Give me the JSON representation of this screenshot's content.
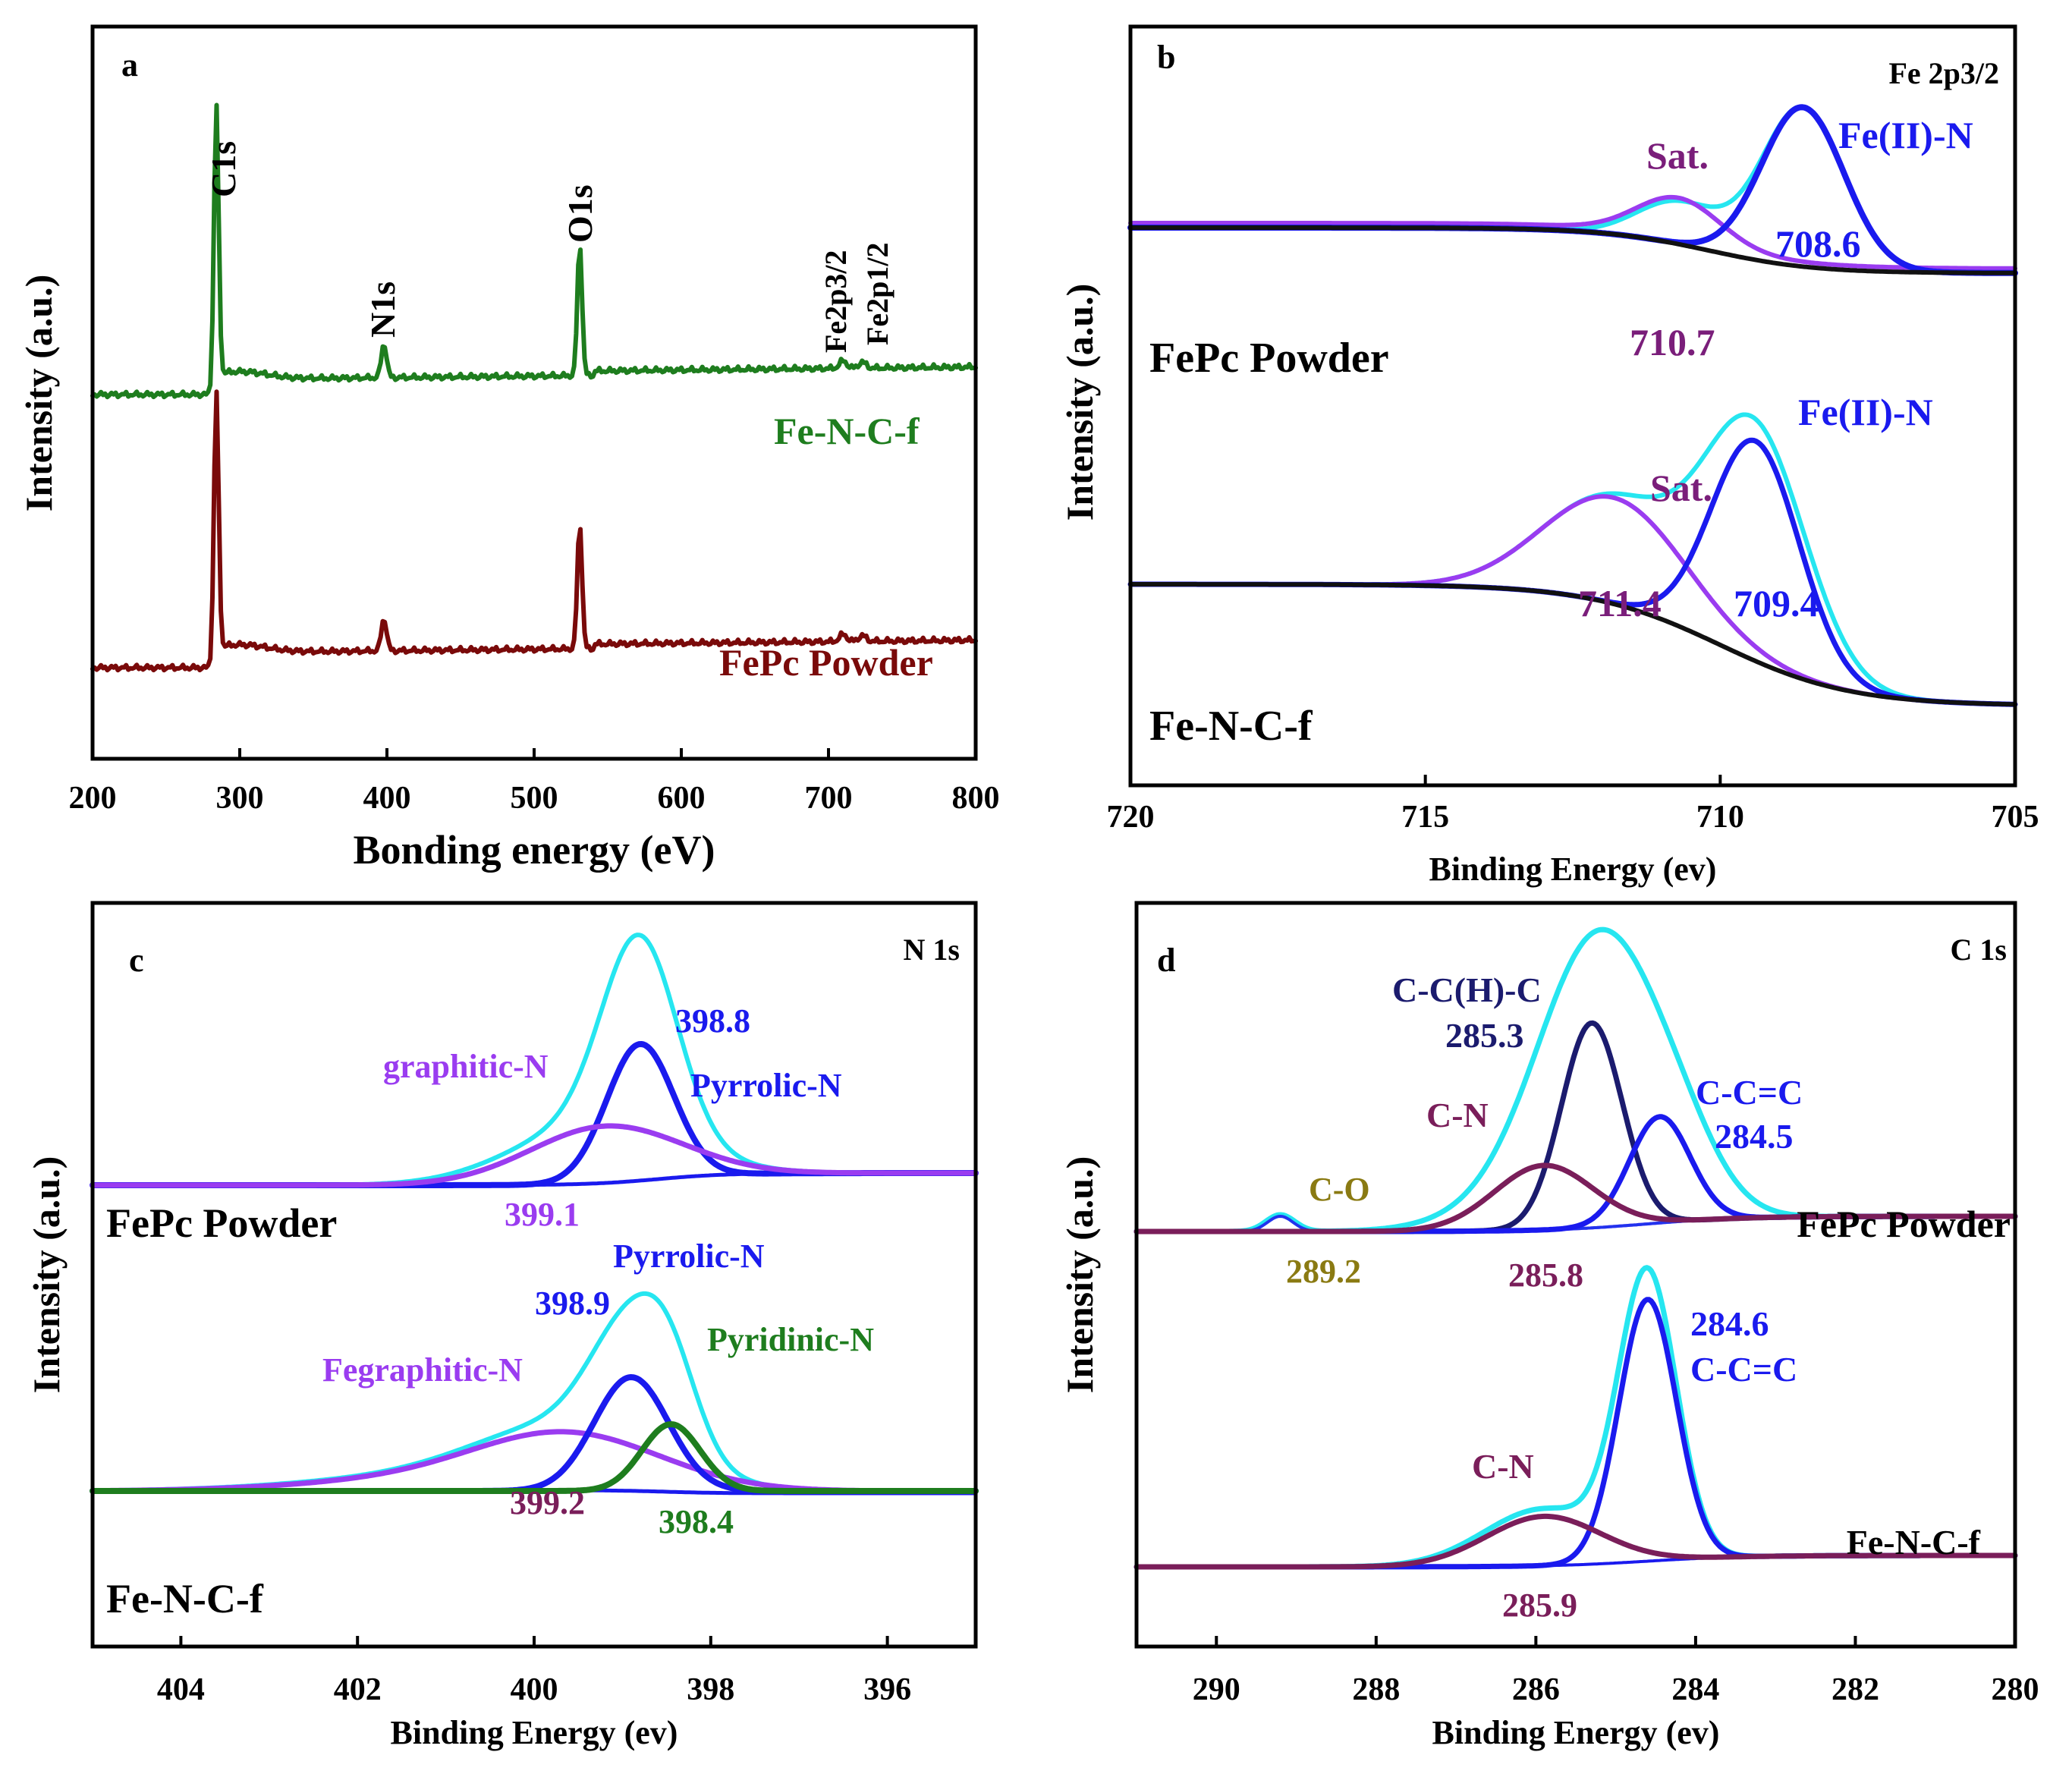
{
  "chart_data": [
    {
      "panel": "a",
      "type": "line",
      "xlabel": "Bonding energy (eV)",
      "ylabel": "Intensity (a.u.)",
      "xlim": [
        200,
        800
      ],
      "x_ticks": [
        "200",
        "300",
        "400",
        "500",
        "600",
        "700",
        "800"
      ],
      "series": [
        {
          "name": "Fe-N-C-f",
          "color": "#1e7d1e"
        },
        {
          "name": "FePc Powder",
          "color": "#7a0a0a"
        }
      ],
      "peak_labels": [
        "C1s",
        "N1s",
        "O1s",
        "Fe2p3/2",
        "Fe2p1/2"
      ],
      "peaks_ev": [
        284,
        398,
        531,
        710,
        723
      ]
    },
    {
      "panel": "b",
      "type": "line",
      "title": "Fe 2p3/2",
      "xlabel": "Binding Energy (ev)",
      "ylabel": "Intensity (a.u.)",
      "xlim": [
        720,
        705
      ],
      "x_ticks": [
        "720",
        "715",
        "710",
        "705"
      ],
      "samples": [
        "FePc Powder",
        "Fe-N-C-f"
      ],
      "labels": {
        "sat": "Sat.",
        "fe": "Fe(II)-N",
        "v1": "708.6",
        "v2": "710.7",
        "v3": "709.4",
        "v4": "711.4"
      },
      "components": [
        {
          "sample": "FePc Powder",
          "label": "Fe(II)-N",
          "center": 708.6
        },
        {
          "sample": "FePc Powder",
          "label": "Sat.",
          "center": 710.7
        },
        {
          "sample": "Fe-N-C-f",
          "label": "Fe(II)-N",
          "center": 709.4
        },
        {
          "sample": "Fe-N-C-f",
          "label": "Sat.",
          "center": 711.4
        }
      ]
    },
    {
      "panel": "c",
      "type": "line",
      "title": "N 1s",
      "xlabel": "Binding Energy (ev)",
      "ylabel": "Intensity (a.u.)",
      "xlim": [
        405,
        395
      ],
      "x_ticks": [
        "404",
        "402",
        "400",
        "398",
        "396"
      ],
      "samples": [
        "FePc Powder",
        "Fe-N-C-f"
      ],
      "labels": {
        "graphitic": "graphitic-N",
        "pyrrolic": "Pyrrolic-N",
        "fegraphitic": "Fegraphitic-N",
        "pyridinic": "Pyridinic-N",
        "v1": "398.8",
        "v2": "399.1",
        "v3": "398.9",
        "v4": "399.2",
        "v5": "398.4"
      },
      "components": [
        {
          "sample": "FePc Powder",
          "label": "Pyrrolic-N",
          "center": 398.8
        },
        {
          "sample": "FePc Powder",
          "label": "graphitic-N",
          "center": 399.1
        },
        {
          "sample": "Fe-N-C-f",
          "label": "Pyrrolic-N",
          "center": 398.9
        },
        {
          "sample": "Fe-N-C-f",
          "label": "Fegraphitic-N",
          "center": 399.2
        },
        {
          "sample": "Fe-N-C-f",
          "label": "Pyridinic-N",
          "center": 398.4
        }
      ]
    },
    {
      "panel": "d",
      "type": "line",
      "title": "C 1s",
      "xlabel": "Binding Energy (ev)",
      "ylabel": "Intensity (a.u.)",
      "xlim": [
        291,
        280
      ],
      "x_ticks": [
        "290",
        "288",
        "286",
        "284",
        "282",
        "280"
      ],
      "samples": [
        "FePc Powder",
        "Fe-N-C-f"
      ],
      "labels": {
        "cch": "C-C(H)-C",
        "ccc": "C-C=C",
        "cn": "C-N",
        "co": "C-O",
        "v1": "285.3",
        "v2": "284.5",
        "v3": "289.2",
        "v4": "285.8",
        "v5": "284.6",
        "v6": "285.9"
      },
      "components": [
        {
          "sample": "FePc Powder",
          "label": "C-C(H)-C",
          "center": 285.3
        },
        {
          "sample": "FePc Powder",
          "label": "C-C=C",
          "center": 284.5
        },
        {
          "sample": "FePc Powder",
          "label": "C-N",
          "center": 285.8
        },
        {
          "sample": "FePc Powder",
          "label": "C-O",
          "center": 289.2
        },
        {
          "sample": "Fe-N-C-f",
          "label": "C-C=C",
          "center": 284.6
        },
        {
          "sample": "Fe-N-C-f",
          "label": "C-N",
          "center": 285.9
        }
      ]
    }
  ]
}
